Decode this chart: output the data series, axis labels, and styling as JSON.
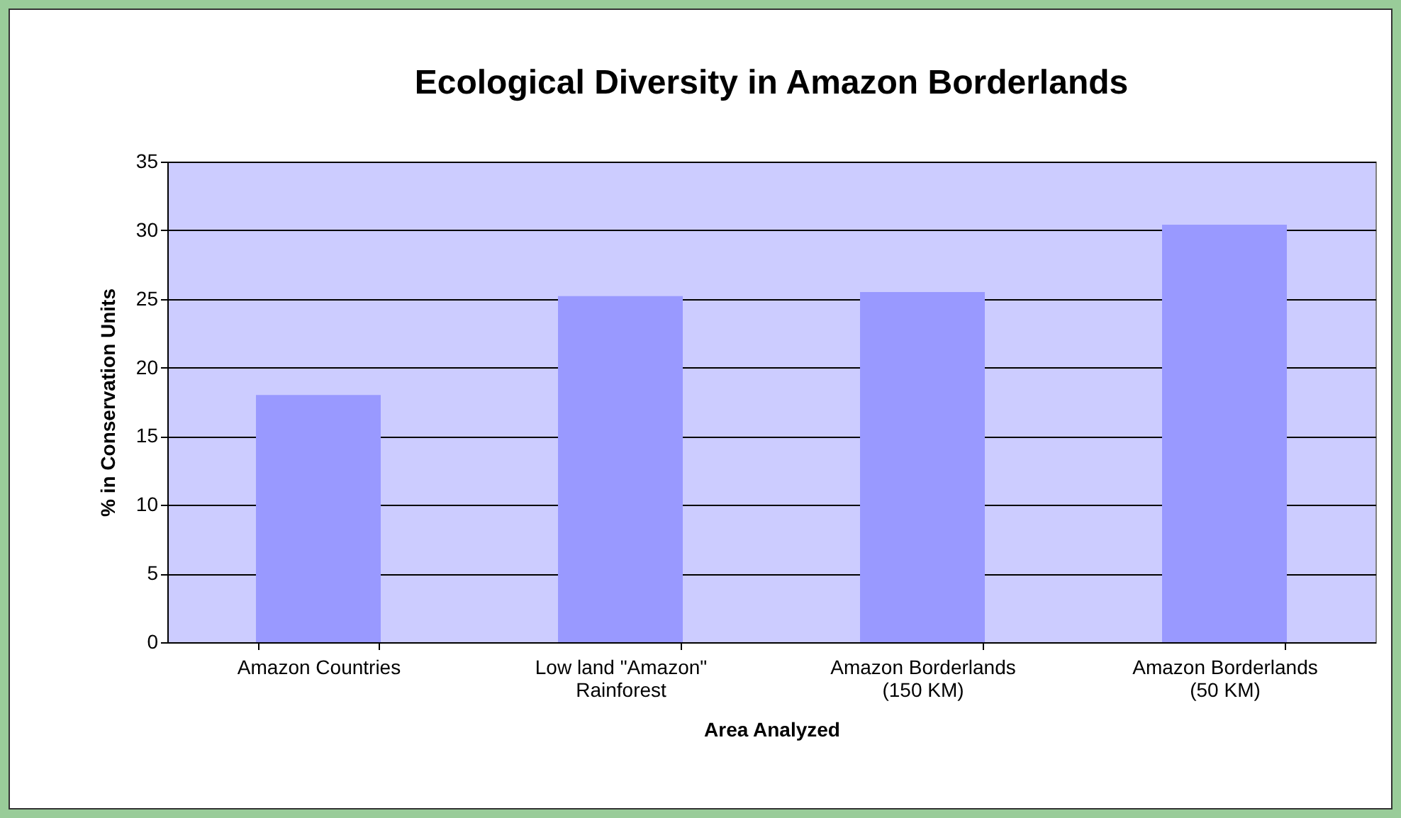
{
  "chart_data": {
    "type": "bar",
    "title": "Ecological Diversity in Amazon Borderlands",
    "xlabel": "Area Analyzed",
    "ylabel": "% in Conservation Units",
    "categories": [
      "Amazon Countries",
      "Low land \"Amazon\"\nRainforest",
      "Amazon Borderlands\n(150 KM)",
      "Amazon Borderlands\n(50 KM)"
    ],
    "values": [
      18,
      25.2,
      25.5,
      30.4
    ],
    "color": "#9999ff",
    "ylim": [
      0,
      35
    ],
    "yticks": [
      0,
      5,
      10,
      15,
      20,
      25,
      30,
      35
    ],
    "grid": "y"
  }
}
